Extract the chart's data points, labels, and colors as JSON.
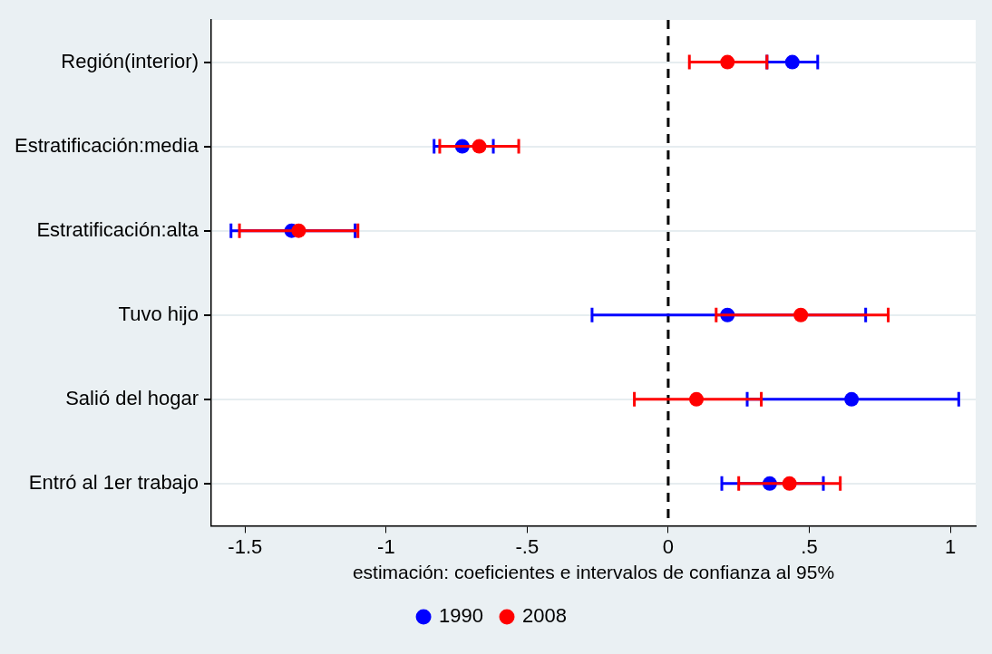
{
  "chart_data": {
    "type": "scatter",
    "orientation": "horizontal",
    "xlabel": "estimación: coeficientes e intervalos de confianza al 95%",
    "categories": [
      "Región(interior)",
      "Estratificación:media",
      "Estratificación:alta",
      "Tuvo hijo",
      "Salió del hogar",
      "Entró al 1er trabajo"
    ],
    "series": [
      {
        "name": "1990",
        "color": "#0000ff",
        "values": [
          0.44,
          -0.73,
          -1.335,
          0.21,
          0.65,
          0.36
        ],
        "errors": [
          [
            0.35,
            0.53
          ],
          [
            -0.83,
            -0.62
          ],
          [
            -1.55,
            -1.11
          ],
          [
            -0.27,
            0.7
          ],
          [
            0.28,
            1.03
          ],
          [
            0.19,
            0.55
          ]
        ]
      },
      {
        "name": "2008",
        "color": "#ff0000",
        "values": [
          0.21,
          -0.67,
          -1.31,
          0.47,
          0.1,
          0.43
        ],
        "errors": [
          [
            0.075,
            0.35
          ],
          [
            -0.81,
            -0.53
          ],
          [
            -1.52,
            -1.1
          ],
          [
            0.17,
            0.78
          ],
          [
            -0.12,
            0.33
          ],
          [
            0.25,
            0.61
          ]
        ]
      }
    ],
    "xlim": [
      -1.62,
      1.09
    ],
    "xticks": [
      {
        "value": -1.5,
        "label": "-1.5"
      },
      {
        "value": -1,
        "label": "-1"
      },
      {
        "value": -0.5,
        "label": "-.5"
      },
      {
        "value": 0,
        "label": "0"
      },
      {
        "value": 0.5,
        "label": ".5"
      },
      {
        "value": 1,
        "label": "1"
      }
    ],
    "ref_lines": [
      {
        "axis": "x",
        "value": 0,
        "color": "#000000",
        "line_style": "dashed"
      }
    ],
    "grid": "y",
    "legend": "bottom",
    "marker": "circle"
  }
}
